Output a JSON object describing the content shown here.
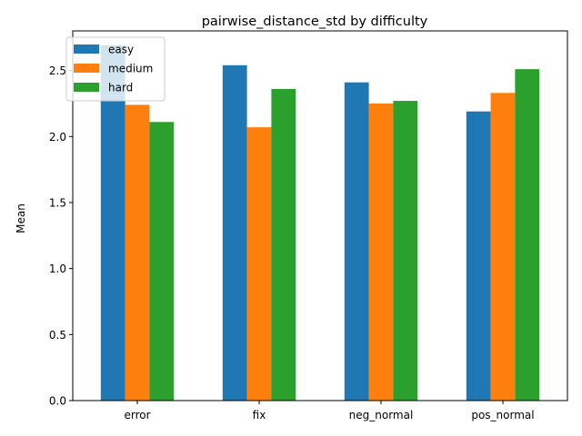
{
  "chart_data": {
    "type": "bar",
    "title": "pairwise_distance_std by difficulty",
    "xlabel": "",
    "ylabel": "Mean",
    "categories": [
      "error",
      "fix",
      "neg_normal",
      "pos_normal"
    ],
    "series": [
      {
        "name": "easy",
        "color": "#1f77b4",
        "values": [
          2.69,
          2.54,
          2.41,
          2.19
        ]
      },
      {
        "name": "medium",
        "color": "#ff7f0e",
        "values": [
          2.24,
          2.07,
          2.25,
          2.33
        ]
      },
      {
        "name": "hard",
        "color": "#2ca02c",
        "values": [
          2.11,
          2.36,
          2.27,
          2.51
        ]
      }
    ],
    "ylim": [
      0,
      2.8
    ],
    "yticks": [
      "0.0",
      "0.5",
      "1.0",
      "1.5",
      "2.0",
      "2.5"
    ],
    "grid": false,
    "legend_position": "top-left"
  }
}
